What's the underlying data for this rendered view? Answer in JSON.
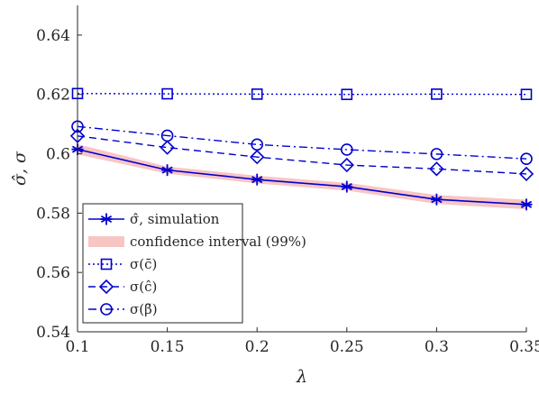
{
  "chart_data": {
    "type": "line",
    "xlabel": "λ",
    "ylabel": "σ̂, σ",
    "xlim": [
      0.1,
      0.35
    ],
    "ylim": [
      0.54,
      0.65
    ],
    "x_ticks": [
      "0.1",
      "0.15",
      "0.2",
      "0.25",
      "0.3",
      "0.35"
    ],
    "y_ticks": [
      "0.54",
      "0.56",
      "0.58",
      "0.6",
      "0.62",
      "0.64"
    ],
    "grid": false,
    "legend_placement": "bottom-left",
    "x": [
      0.1,
      0.15,
      0.2,
      0.25,
      0.3,
      0.35
    ],
    "series": [
      {
        "name": "σ̂, simulation",
        "values": [
          0.6015,
          0.5945,
          0.5913,
          0.5889,
          0.5846,
          0.5829
        ],
        "linestyle": "solid",
        "marker": "asterisk",
        "color": "#0000d0"
      },
      {
        "name": "confidence interval (99%)",
        "lower": [
          0.5998,
          0.5933,
          0.59,
          0.5876,
          0.5831,
          0.5813
        ],
        "upper": [
          0.6032,
          0.5957,
          0.5926,
          0.5902,
          0.5861,
          0.5845
        ],
        "type": "band",
        "color": "#f8c5c5"
      },
      {
        "name": "σ(c̄)",
        "values": [
          0.6203,
          0.6202,
          0.6201,
          0.62,
          0.6201,
          0.62
        ],
        "linestyle": "dotted",
        "marker": "square",
        "color": "#0000d0"
      },
      {
        "name": "σ(ĉ)",
        "values": [
          0.606,
          0.6021,
          0.5989,
          0.5962,
          0.5949,
          0.5932
        ],
        "linestyle": "dashed",
        "marker": "diamond",
        "color": "#0000d0"
      },
      {
        "name": "σ(β̃)",
        "values": [
          0.6092,
          0.6061,
          0.6031,
          0.6014,
          0.5999,
          0.5983
        ],
        "linestyle": "dashdot",
        "marker": "circle",
        "color": "#0000d0"
      }
    ]
  }
}
